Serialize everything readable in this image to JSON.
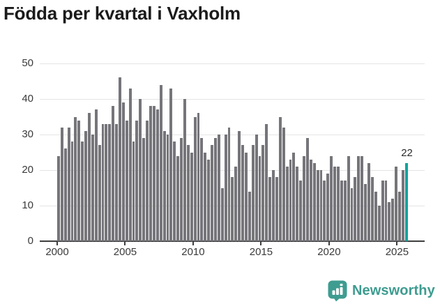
{
  "header": {
    "title": "Födda per kvartal i Vaxholm"
  },
  "chart_data": {
    "type": "bar",
    "title": "Födda per kvartal i Vaxholm",
    "xlabel": "",
    "ylabel": "",
    "ylim": [
      0,
      50
    ],
    "y_ticks": [
      0,
      10,
      20,
      30,
      40,
      50
    ],
    "x_tick_labels": [
      "2000",
      "2005",
      "2010",
      "2015",
      "2020",
      "2025"
    ],
    "grid": "horizontal",
    "legend": "none",
    "bar_color": "#75757a",
    "highlight_color": "#10a49e",
    "annotation": {
      "text": "22",
      "applies_to": "last-bar"
    },
    "series": [
      {
        "name": "Födda per kvartal",
        "unit": "quarters",
        "data": [
          {
            "year": 2000,
            "values": [
              24,
              32,
              26,
              32
            ]
          },
          {
            "year": 2001,
            "values": [
              28,
              35,
              34,
              28
            ]
          },
          {
            "year": 2002,
            "values": [
              31,
              36,
              30,
              37
            ]
          },
          {
            "year": 2003,
            "values": [
              27,
              33,
              33,
              33
            ]
          },
          {
            "year": 2004,
            "values": [
              38,
              33,
              46,
              39
            ]
          },
          {
            "year": 2005,
            "values": [
              34,
              43,
              28,
              34
            ]
          },
          {
            "year": 2006,
            "values": [
              40,
              29,
              34,
              38
            ]
          },
          {
            "year": 2007,
            "values": [
              38,
              37,
              44,
              31
            ]
          },
          {
            "year": 2008,
            "values": [
              30,
              43,
              28,
              24
            ]
          },
          {
            "year": 2009,
            "values": [
              29,
              40,
              27,
              25
            ]
          },
          {
            "year": 2010,
            "values": [
              35,
              36,
              29,
              25
            ]
          },
          {
            "year": 2011,
            "values": [
              23,
              27,
              29,
              30
            ]
          },
          {
            "year": 2012,
            "values": [
              15,
              30,
              32,
              18
            ]
          },
          {
            "year": 2013,
            "values": [
              21,
              31,
              27,
              25
            ]
          },
          {
            "year": 2014,
            "values": [
              14,
              27,
              30,
              24
            ]
          },
          {
            "year": 2015,
            "values": [
              27,
              33,
              18,
              20
            ]
          },
          {
            "year": 2016,
            "values": [
              18,
              35,
              32,
              21
            ]
          },
          {
            "year": 2017,
            "values": [
              23,
              25,
              21,
              17
            ]
          },
          {
            "year": 2018,
            "values": [
              24,
              29,
              23,
              22
            ]
          },
          {
            "year": 2019,
            "values": [
              20,
              20,
              17,
              19
            ]
          },
          {
            "year": 2020,
            "values": [
              24,
              21,
              21,
              17
            ]
          },
          {
            "year": 2021,
            "values": [
              17,
              24,
              15,
              18
            ]
          },
          {
            "year": 2022,
            "values": [
              24,
              24,
              16,
              22
            ]
          },
          {
            "year": 2023,
            "values": [
              18,
              14,
              10,
              17
            ]
          },
          {
            "year": 2024,
            "values": [
              17,
              11,
              12,
              21
            ]
          },
          {
            "year": 2025,
            "values": [
              14,
              20,
              22
            ]
          }
        ]
      }
    ]
  },
  "footer": {
    "brand": "Newsworthy",
    "brand_color": "#3e9c90",
    "logo_icon": "newsworthy-bar-chart-badge-icon"
  }
}
